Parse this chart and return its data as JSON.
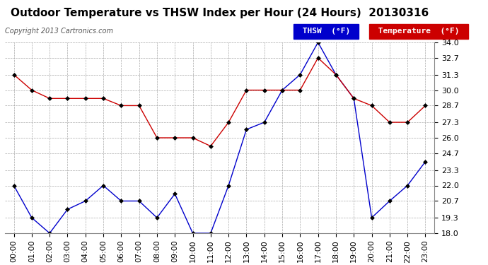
{
  "title": "Outdoor Temperature vs THSW Index per Hour (24 Hours)  20130316",
  "copyright": "Copyright 2013 Cartronics.com",
  "hours": [
    "00:00",
    "01:00",
    "02:00",
    "03:00",
    "04:00",
    "05:00",
    "06:00",
    "07:00",
    "08:00",
    "09:00",
    "10:00",
    "11:00",
    "12:00",
    "13:00",
    "14:00",
    "15:00",
    "16:00",
    "17:00",
    "18:00",
    "19:00",
    "20:00",
    "21:00",
    "22:00",
    "23:00"
  ],
  "temperature": [
    31.3,
    30.0,
    29.3,
    29.3,
    29.3,
    29.3,
    28.7,
    28.7,
    26.0,
    26.0,
    26.0,
    25.3,
    27.3,
    30.0,
    30.0,
    30.0,
    30.0,
    32.7,
    31.3,
    29.3,
    28.7,
    27.3,
    27.3,
    28.7
  ],
  "thsw": [
    22.0,
    19.3,
    18.0,
    20.0,
    20.7,
    22.0,
    20.7,
    20.7,
    19.3,
    21.3,
    18.0,
    18.0,
    22.0,
    26.7,
    27.3,
    30.0,
    31.3,
    34.0,
    31.3,
    29.3,
    19.3,
    20.7,
    22.0,
    24.0
  ],
  "temp_color": "#cc0000",
  "thsw_color": "#0000cc",
  "ylim_min": 18.0,
  "ylim_max": 34.0,
  "ytick_labels": [
    "18.0",
    "19.3",
    "20.7",
    "22.0",
    "23.3",
    "24.7",
    "26.0",
    "27.3",
    "28.7",
    "30.0",
    "31.3",
    "32.7",
    "34.0"
  ],
  "ytick_values": [
    18.0,
    19.3,
    20.7,
    22.0,
    23.3,
    24.7,
    26.0,
    27.3,
    28.7,
    30.0,
    31.3,
    32.7,
    34.0
  ],
  "bg_color": "#ffffff",
  "grid_color": "#aaaaaa",
  "title_fontsize": 11,
  "axis_fontsize": 8,
  "copyright_fontsize": 7,
  "legend_thsw_bg": "#0000cc",
  "legend_temp_bg": "#cc0000",
  "marker": "D",
  "marker_size": 3
}
